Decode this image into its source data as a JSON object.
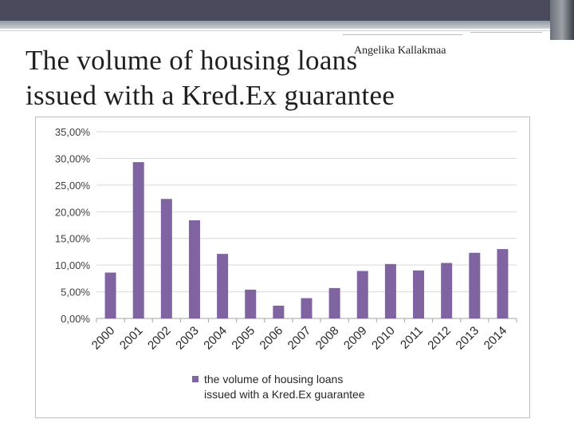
{
  "slide": {
    "title_line1": "The volume of housing loans",
    "title_line2": "issued with a Kred.Ex guarantee",
    "author": "Angelika Kallakmaa"
  },
  "colors": {
    "bar": "#8064a2",
    "grid": "#d9d9d9",
    "axis_text": "#404040"
  },
  "chart_data": {
    "type": "bar",
    "title": "The volume of housing loans issued with a Kred.Ex guarantee",
    "categories": [
      "2000",
      "2001",
      "2002",
      "2003",
      "2004",
      "2005",
      "2006",
      "2007",
      "2008",
      "2009",
      "2010",
      "2011",
      "2012",
      "2013",
      "2014"
    ],
    "series": [
      {
        "name": "the volume of housing loans issued with a Kred.Ex guarantee",
        "legend_line1": "the volume of housing loans",
        "legend_line2": "issued with a Kred.Ex guarantee",
        "values": [
          8.6,
          29.3,
          22.4,
          18.4,
          12.1,
          5.4,
          2.4,
          3.8,
          5.7,
          8.9,
          10.2,
          9.0,
          10.4,
          12.3,
          13.0
        ]
      }
    ],
    "ylim": [
      0,
      35
    ],
    "yticks": [
      0,
      5,
      10,
      15,
      20,
      25,
      30,
      35
    ],
    "ytick_labels": [
      "0,00%",
      "5,00%",
      "10,00%",
      "15,00%",
      "20,00%",
      "25,00%",
      "30,00%",
      "35,00%"
    ],
    "xlabel": "",
    "ylabel": "",
    "grid": true,
    "legend_position": "bottom"
  }
}
